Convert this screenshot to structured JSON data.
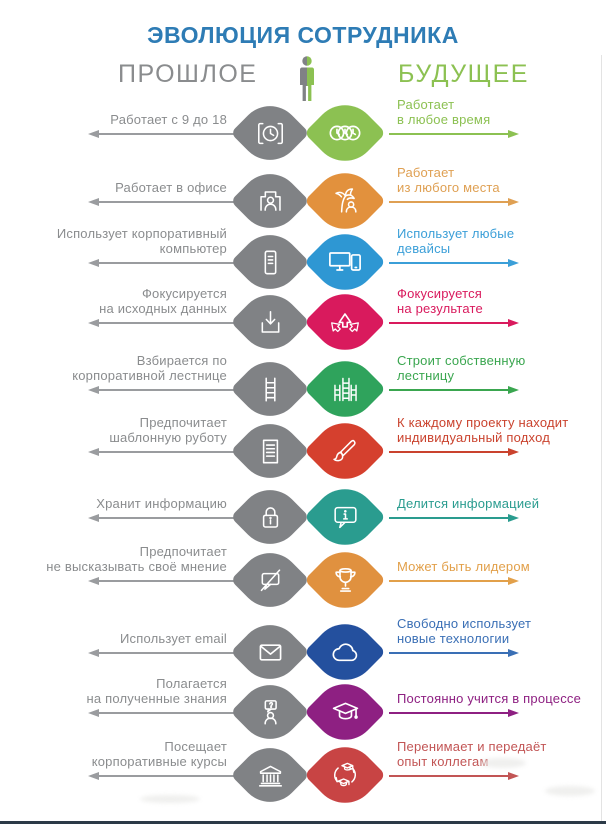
{
  "title": "ЭВОЛЮЦИЯ СОТРУДНИКА",
  "headers": {
    "past": "ПРОШЛОЕ",
    "future": "БУДУЩЕЕ"
  },
  "center_icon": "split-person-icon",
  "colors": {
    "title": "#2E7CB5",
    "past_header": "#8A8C8E",
    "future_header": "#8CC152",
    "shape_gray": "#808285",
    "arrow_gray": "#9A9C9F",
    "past_text": "#8A8C8E"
  },
  "rows": [
    {
      "past_lines": [
        "Работает с 9 до 18"
      ],
      "future_lines": [
        "Работает",
        "в любое время"
      ],
      "past_icon": "alarm-clock-icon",
      "future_icon": "three-clocks-icon",
      "color": "#8CC152",
      "text_color": "#8CC152"
    },
    {
      "past_lines": [
        "Работает в офисе"
      ],
      "future_lines": [
        "Работает",
        "из любого места"
      ],
      "past_icon": "office-person-icon",
      "future_icon": "palm-tree-icon",
      "color": "#E2913D",
      "text_color": "#DFA053"
    },
    {
      "past_lines": [
        "Использует корпоративный",
        "компьютер"
      ],
      "future_lines": [
        "Использует любые",
        "девайсы"
      ],
      "past_icon": "computer-tower-icon",
      "future_icon": "devices-icon",
      "color": "#2E97D3",
      "text_color": "#3B9FD8"
    },
    {
      "past_lines": [
        "Фокусируется",
        "на исходных данных"
      ],
      "future_lines": [
        "Фокусируется",
        "на результате"
      ],
      "past_icon": "download-icon",
      "future_icon": "arrows-up-icon",
      "color": "#D91A5D",
      "text_color": "#D91A5D"
    },
    {
      "past_lines": [
        "Взбирается по",
        "корпоративной лестнице"
      ],
      "future_lines": [
        "Строит собственную",
        "лестницу"
      ],
      "past_icon": "ladder-icon",
      "future_icon": "ladders-icon",
      "color": "#2FA35C",
      "text_color": "#3AA64F"
    },
    {
      "past_lines": [
        "Предпочитает",
        "шаблонную руботу"
      ],
      "future_lines": [
        "К каждому проекту находит",
        "индивидуальный подход"
      ],
      "past_icon": "document-icon",
      "future_icon": "paintbrush-icon",
      "color": "#D5402E",
      "text_color": "#CA432E"
    },
    {
      "past_lines": [
        "Хранит информацию"
      ],
      "future_lines": [
        "Делится информацией"
      ],
      "past_icon": "lock-icon",
      "future_icon": "info-bubble-icon",
      "color": "#2A9C8F",
      "text_color": "#2A9C8F"
    },
    {
      "past_lines": [
        "Предпочитает",
        "не высказывать своё мнение"
      ],
      "future_lines": [
        "Может быть лидером"
      ],
      "past_icon": "muted-speech-icon",
      "future_icon": "trophy-icon",
      "color": "#E0913F",
      "text_color": "#E2A04A"
    },
    {
      "past_lines": [
        "Использует email"
      ],
      "future_lines": [
        "Свободно использует",
        "новые технологии"
      ],
      "past_icon": "envelope-icon",
      "future_icon": "cloud-icon",
      "color": "#24509E",
      "text_color": "#3A6FB5"
    },
    {
      "past_lines": [
        "Полагается",
        "на полученные знания"
      ],
      "future_lines": [
        "Постоянно учится в процессе"
      ],
      "past_icon": "person-question-icon",
      "future_icon": "graduation-cap-icon",
      "color": "#8E2082",
      "text_color": "#8E2082"
    },
    {
      "past_lines": [
        "Посещает",
        "корпоративные курсы"
      ],
      "future_lines": [
        "Перенимает и передаёт",
        "опыт коллегам"
      ],
      "past_icon": "bank-icon",
      "future_icon": "caps-cycle-icon",
      "color": "#C84444",
      "text_color": "#C25555"
    }
  ]
}
